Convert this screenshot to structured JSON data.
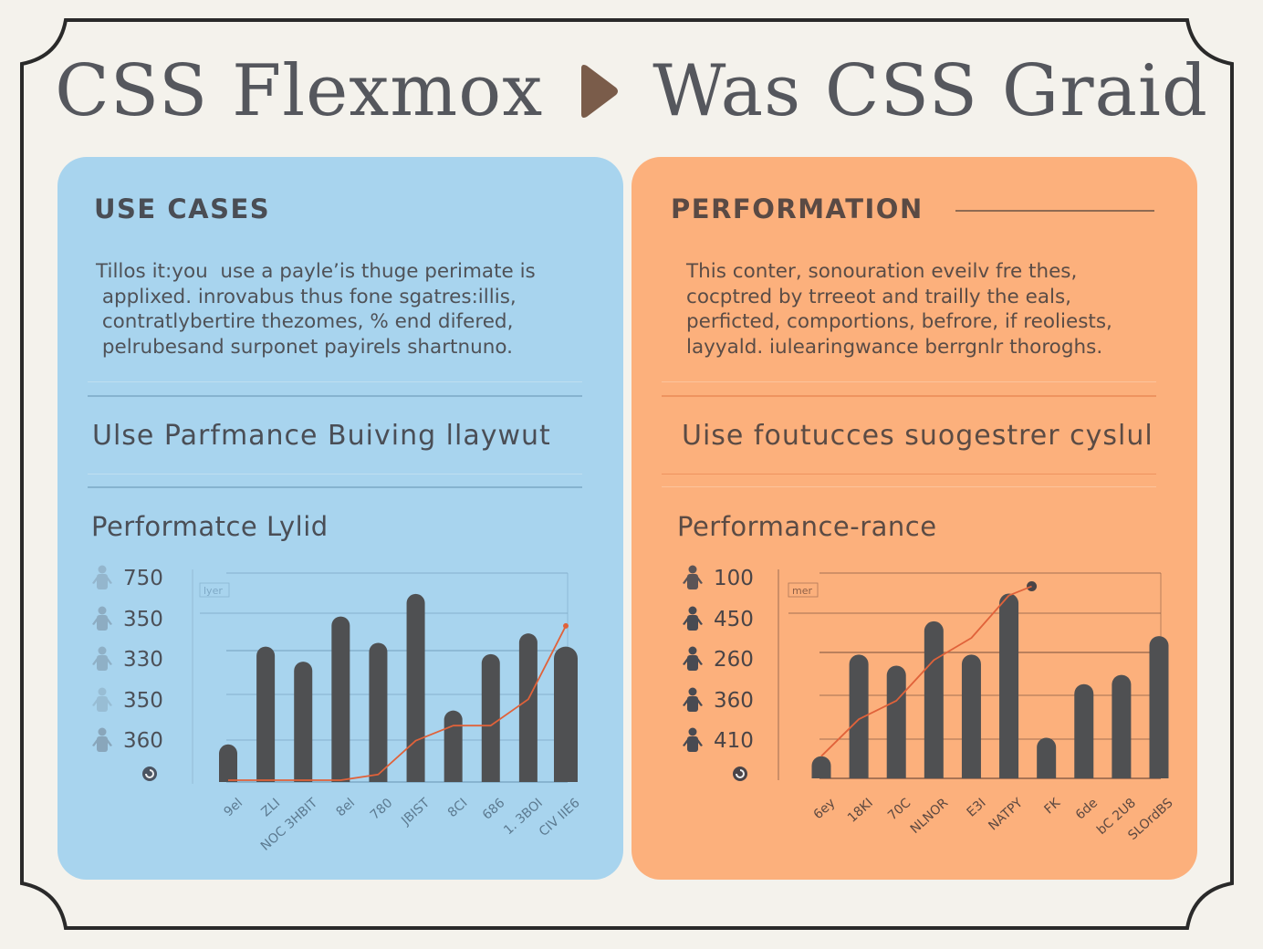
{
  "title": {
    "left": "CSS Flexmox",
    "right": "Was CSS Graid",
    "separator_icon": "play-triangle-icon",
    "separator_color": "#7a5c4a"
  },
  "colors": {
    "background": "#f4f2ec",
    "frame": "#2a2a2a",
    "blue_panel": "#a8d4ee",
    "orange_panel": "#fcb07c",
    "bar": "#4f5052",
    "line": "#e0623a"
  },
  "panels": [
    {
      "id": "flexbox",
      "heading": "USE CASES",
      "body": "Tillos it:you  use a payle’is thuge perimate is\n applixed. inrovabus thus fone sgatres:illis,\n contratlybertire thezomes, % end difered,\n pelrubesand surponet payirels shartnuno.",
      "subheading": "Ulse Parfmance Buiving llaywut",
      "chart_title": "Performatce Lylid",
      "legend": [
        {
          "icon": "person-icon",
          "value": "750"
        },
        {
          "icon": "person-icon",
          "value": "350"
        },
        {
          "icon": "person-icon",
          "value": "330"
        },
        {
          "icon": "person-icon",
          "value": "350"
        },
        {
          "icon": "person-icon",
          "value": "360"
        }
      ],
      "legend_footer_icon": "refresh-circle-icon",
      "chart_tag": "lyer"
    },
    {
      "id": "grid",
      "heading": "PERFORMATION",
      "body": "This conter, sonouration eveilv fre thes,\ncocptred by trreeot and trailly the eals,\nperficted, comportions, befrore, if reoliests,\nlayyald. iulearingwance berrgnlr thoroghs.",
      "subheading": "Uise foutucces suogestrer cyslul",
      "chart_title": "Performance-rance",
      "legend": [
        {
          "icon": "person-icon",
          "value": "100"
        },
        {
          "icon": "person-icon",
          "value": "450"
        },
        {
          "icon": "person-icon",
          "value": "260"
        },
        {
          "icon": "person-icon",
          "value": "360"
        },
        {
          "icon": "person-icon",
          "value": "410"
        }
      ],
      "legend_footer_icon": "leaf-circle-icon",
      "chart_tag": "mer"
    }
  ],
  "chart_data": [
    {
      "type": "bar",
      "title": "Performatce Lylid",
      "panel": "flexbox",
      "categories": [
        "9el",
        "ZLI",
        "NOC 3HBIT",
        "8el",
        "780",
        "JBIST",
        "8CI",
        "686",
        "1. 3BOI",
        "CIV IIE6"
      ],
      "series": [
        {
          "name": "bars",
          "kind": "bar",
          "values": [
            20,
            72,
            64,
            88,
            74,
            100,
            38,
            68,
            79,
            72
          ]
        },
        {
          "name": "trend",
          "kind": "line",
          "values": [
            0,
            0,
            0,
            0,
            4,
            22,
            30,
            30,
            44,
            83
          ]
        }
      ],
      "ylim": [
        0,
        100
      ],
      "grid": true,
      "legend_position": "left",
      "xlabel": "",
      "ylabel": ""
    },
    {
      "type": "bar",
      "title": "Performance-rance",
      "panel": "grid",
      "categories": [
        "6ey",
        "18KI",
        "70C",
        "NLNOR",
        "E3I",
        "NATPY",
        "FK",
        "6de",
        "bC 2U8",
        "SLOrdBS"
      ],
      "series": [
        {
          "name": "bars",
          "kind": "bar",
          "values": [
            12,
            67,
            61,
            85,
            67,
            100,
            22,
            51,
            56,
            77
          ]
        },
        {
          "name": "trend",
          "kind": "line",
          "values": [
            12,
            32,
            42,
            64,
            76,
            99,
            null,
            null,
            null,
            null
          ]
        }
      ],
      "ylim": [
        0,
        100
      ],
      "grid": true,
      "legend_position": "left",
      "xlabel": "",
      "ylabel": ""
    }
  ]
}
